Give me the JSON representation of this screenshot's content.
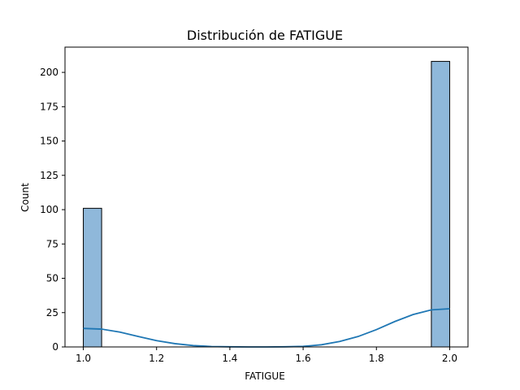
{
  "chart_data": {
    "type": "histogram",
    "title": "Distribución de FATIGUE",
    "xlabel": "FATIGUE",
    "ylabel": "Count",
    "xlim": [
      0.95,
      2.05
    ],
    "ylim": [
      0,
      218.4
    ],
    "xticks": [
      1.0,
      1.2,
      1.4,
      1.6,
      1.8,
      2.0
    ],
    "xtick_labels": [
      "1.0",
      "1.2",
      "1.4",
      "1.6",
      "1.8",
      "2.0"
    ],
    "yticks": [
      0,
      25,
      50,
      75,
      100,
      125,
      150,
      175,
      200
    ],
    "ytick_labels": [
      "0",
      "25",
      "50",
      "75",
      "100",
      "125",
      "150",
      "175",
      "200"
    ],
    "bins": [
      {
        "x0": 1.0,
        "x1": 1.05,
        "count": 101
      },
      {
        "x0": 1.95,
        "x1": 2.0,
        "count": 208
      }
    ],
    "kde": {
      "x": [
        1.0,
        1.05,
        1.1,
        1.15,
        1.2,
        1.25,
        1.3,
        1.35,
        1.4,
        1.45,
        1.5,
        1.55,
        1.6,
        1.65,
        1.7,
        1.75,
        1.8,
        1.85,
        1.9,
        1.95,
        2.0
      ],
      "y": [
        13.5,
        13.0,
        10.8,
        7.6,
        4.6,
        2.4,
        1.0,
        0.3,
        0.1,
        0.0,
        0.0,
        0.1,
        0.4,
        1.6,
        4.0,
        7.6,
        12.6,
        18.5,
        23.6,
        27.0,
        27.8
      ]
    },
    "colors": {
      "bar_fill": "#8fb8da",
      "bar_edge": "#000000",
      "kde_line": "#1f77b4"
    }
  }
}
